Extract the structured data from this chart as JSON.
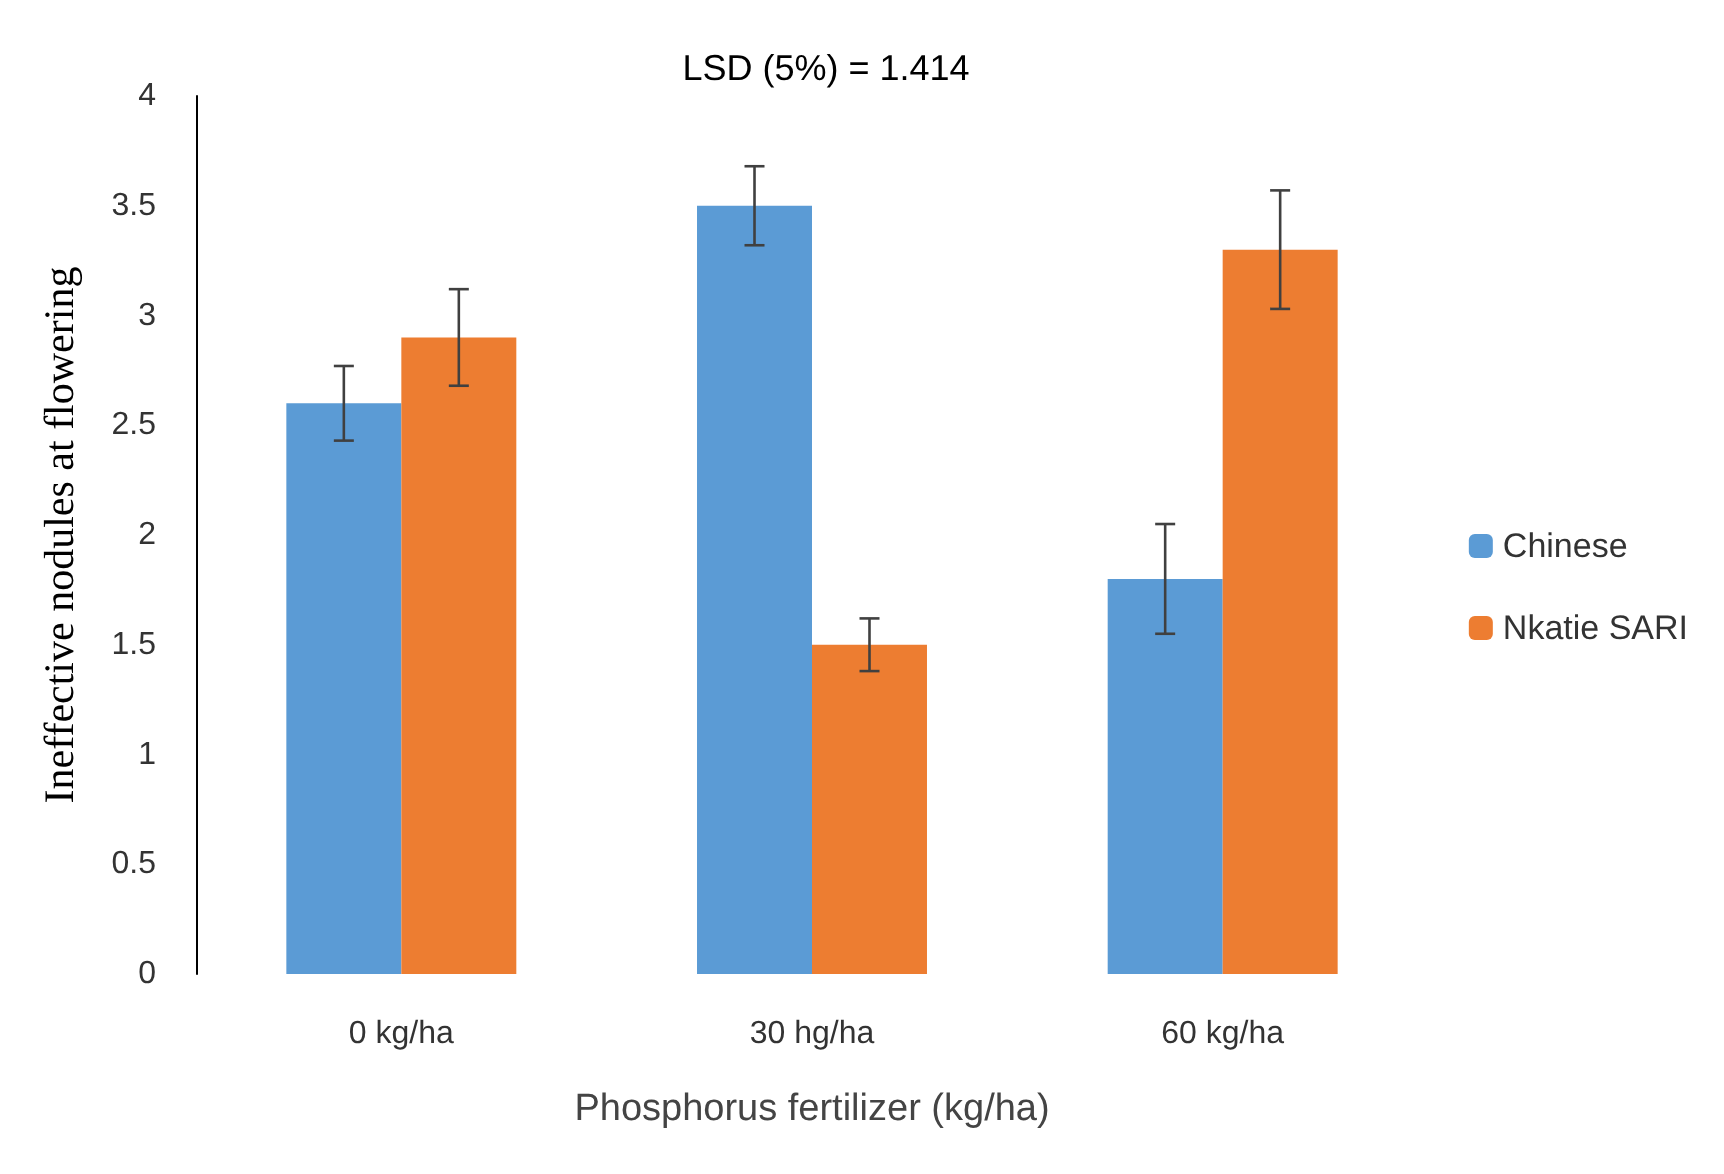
{
  "chart_data": {
    "type": "bar",
    "title": "LSD (5%) = 1.414",
    "xlabel": "Phosphorus fertilizer (kg/ha)",
    "ylabel": "Ineffective nodules at flowering",
    "categories": [
      "0 kg/ha",
      "30 hg/ha",
      "60 kg/ha"
    ],
    "series": [
      {
        "name": "Chinese",
        "color": "#5b9bd5",
        "values": [
          2.6,
          3.5,
          1.8
        ],
        "errors": [
          0.17,
          0.18,
          0.25
        ]
      },
      {
        "name": "Nkatie SARI",
        "color": "#ed7d31",
        "values": [
          2.9,
          1.5,
          3.3
        ],
        "errors": [
          0.22,
          0.12,
          0.27
        ]
      }
    ],
    "ylim": [
      0,
      4
    ],
    "yticks": [
      0,
      0.5,
      1,
      1.5,
      2,
      2.5,
      3,
      3.5,
      4
    ],
    "grid": false,
    "legend": "right"
  }
}
